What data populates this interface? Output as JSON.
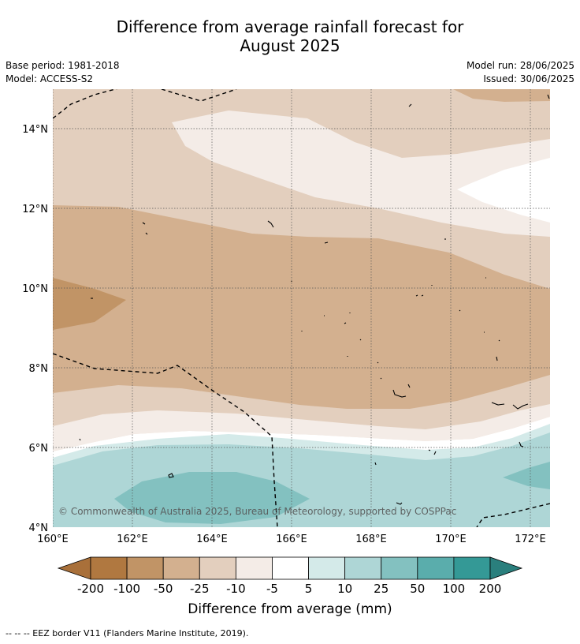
{
  "title_line1": "Difference from average rainfall forecast for",
  "title_line2": "August 2025",
  "base_period": "Base period: 1981-2018",
  "model": "Model: ACCESS-S2",
  "model_run": "Model run: 28/06/2025",
  "issued": "Issued: 30/06/2025",
  "copyright": "© Commonwealth of Australia 2025, Bureau of Meteorology, supported by COSPPac",
  "lat_labels": [
    "14°N",
    "12°N",
    "10°N",
    "8°N",
    "6°N",
    "4°N"
  ],
  "lon_labels": [
    "160°E",
    "162°E",
    "164°E",
    "166°E",
    "168°E",
    "170°E",
    "172°E"
  ],
  "colorbar": {
    "ticks": [
      "-200",
      "-100",
      "-50",
      "-25",
      "-10",
      "-5",
      "5",
      "10",
      "25",
      "50",
      "100",
      "200"
    ],
    "colors": [
      "#a9703a",
      "#b07840",
      "#c19466",
      "#d3b08f",
      "#e3cfbe",
      "#f4ece7",
      "#ffffff",
      "#d4eae9",
      "#aed6d6",
      "#83c1c0",
      "#5aadac",
      "#349996",
      "#2a7f7d"
    ],
    "label": "Difference from average (mm)"
  },
  "legend_line": "-- -- -- EEZ border V11 (Flanders Marine Institute, 2019)."
}
